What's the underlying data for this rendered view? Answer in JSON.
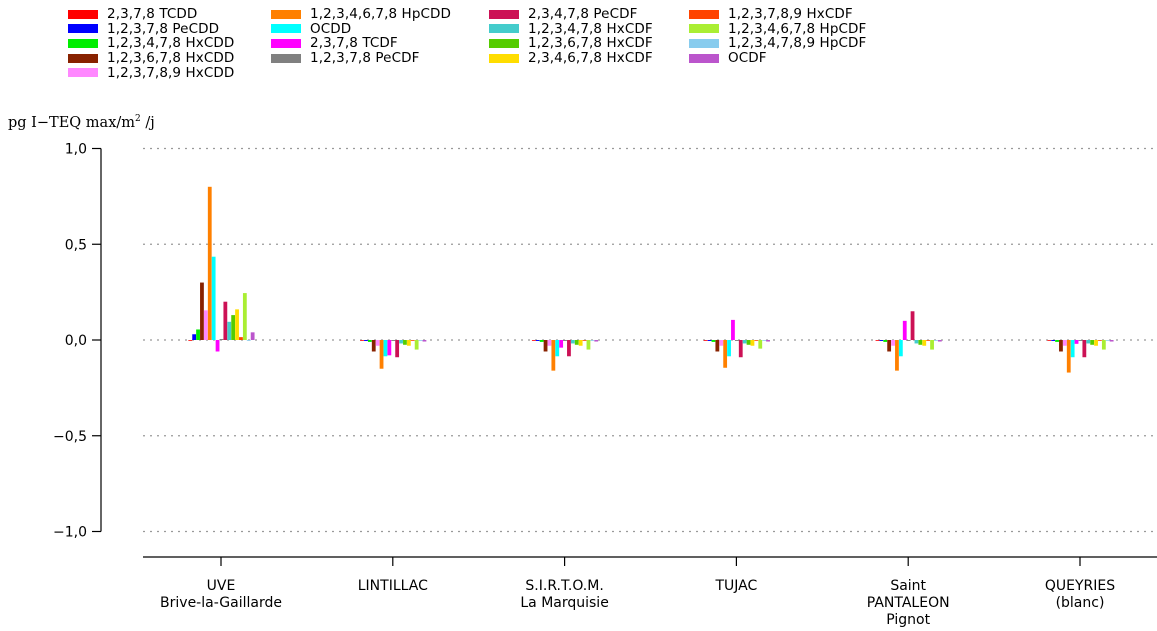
{
  "y_axis_label": {
    "text": "pg I−TEQ max/m",
    "sup": "2",
    "suffix": " /j"
  },
  "chart_data": {
    "type": "bar",
    "title": "",
    "xlabel": "",
    "ylabel": "pg I−TEQ max/m² /j",
    "ylim": [
      -1.1,
      1.1
    ],
    "yticks": [
      1.0,
      0.5,
      0.0,
      -0.5,
      -1.0
    ],
    "ytick_labels": [
      "1,0",
      "0,5",
      "0,0",
      "−0,5",
      "−1,0"
    ],
    "grid": "dotted horizontal at ticks",
    "legend_position": "top",
    "categories": [
      [
        "UVE",
        "Brive-la-Gaillarde"
      ],
      [
        "LINTILLAC"
      ],
      [
        "S.I.R.T.O.M.",
        "La Marquisie"
      ],
      [
        "TUJAC"
      ],
      [
        "Saint",
        "PANTALEON",
        "Pignot"
      ],
      [
        "QUEYRIES",
        "(blanc)"
      ]
    ],
    "series": [
      {
        "name": "2,3,7,8 TCDD",
        "color": "#ff0000",
        "values": [
          0.0,
          -0.003,
          -0.003,
          -0.003,
          -0.003,
          -0.003
        ]
      },
      {
        "name": "1,2,3,7,8 PeCDD",
        "color": "#0000ff",
        "values": [
          0.03,
          -0.005,
          -0.005,
          -0.005,
          -0.005,
          -0.005
        ]
      },
      {
        "name": "1,2,3,4,7,8 HxCDD",
        "color": "#00ee00",
        "values": [
          0.055,
          -0.01,
          -0.01,
          -0.01,
          -0.01,
          -0.01
        ]
      },
      {
        "name": "1,2,3,6,7,8 HxCDD",
        "color": "#882200",
        "values": [
          0.3,
          -0.06,
          -0.06,
          -0.06,
          -0.06,
          -0.06
        ]
      },
      {
        "name": "1,2,3,7,8,9 HxCDD",
        "color": "#ff88ff",
        "values": [
          0.155,
          -0.03,
          -0.03,
          -0.03,
          -0.03,
          -0.03
        ]
      },
      {
        "name": "1,2,3,4,6,7,8 HpCDD",
        "color": "#ff8000",
        "values": [
          0.8,
          -0.15,
          -0.16,
          -0.145,
          -0.16,
          -0.17
        ]
      },
      {
        "name": "OCDD",
        "color": "#00ffff",
        "values": [
          0.435,
          -0.085,
          -0.085,
          -0.085,
          -0.085,
          -0.09
        ]
      },
      {
        "name": "2,3,7,8 TCDF",
        "color": "#ff00ff",
        "values": [
          -0.06,
          -0.08,
          -0.04,
          0.105,
          0.1,
          -0.02
        ]
      },
      {
        "name": "1,2,3,7,8 PeCDF",
        "color": "#808080",
        "values": [
          0.005,
          -0.005,
          -0.005,
          -0.005,
          -0.005,
          -0.005
        ]
      },
      {
        "name": "2,3,4,7,8 PeCDF",
        "color": "#cc1155",
        "values": [
          0.2,
          -0.09,
          -0.085,
          -0.09,
          0.15,
          -0.09
        ]
      },
      {
        "name": "1,2,3,4,7,8 HxCDF",
        "color": "#44cccc",
        "values": [
          0.095,
          -0.018,
          -0.018,
          -0.018,
          -0.018,
          -0.018
        ]
      },
      {
        "name": "1,2,3,6,7,8 HxCDF",
        "color": "#55cc00",
        "values": [
          0.13,
          -0.025,
          -0.025,
          -0.025,
          -0.025,
          -0.025
        ]
      },
      {
        "name": "2,3,4,6,7,8 HxCDF",
        "color": "#ffdd00",
        "values": [
          0.16,
          -0.03,
          -0.03,
          -0.03,
          -0.03,
          -0.03
        ]
      },
      {
        "name": "1,2,3,7,8,9 HxCDF",
        "color": "#ff4400",
        "values": [
          0.015,
          -0.003,
          -0.003,
          -0.003,
          -0.003,
          -0.003
        ]
      },
      {
        "name": "1,2,3,4,6,7,8 HpCDF",
        "color": "#aaee33",
        "values": [
          0.245,
          -0.05,
          -0.05,
          -0.045,
          -0.05,
          -0.05
        ]
      },
      {
        "name": "1,2,3,4,7,8,9 HpCDF",
        "color": "#88ccee",
        "values": [
          0.0,
          -0.002,
          -0.002,
          -0.002,
          -0.002,
          -0.002
        ]
      },
      {
        "name": "OCDF",
        "color": "#bb55cc",
        "values": [
          0.04,
          -0.008,
          -0.008,
          -0.008,
          -0.008,
          -0.008
        ]
      }
    ]
  }
}
